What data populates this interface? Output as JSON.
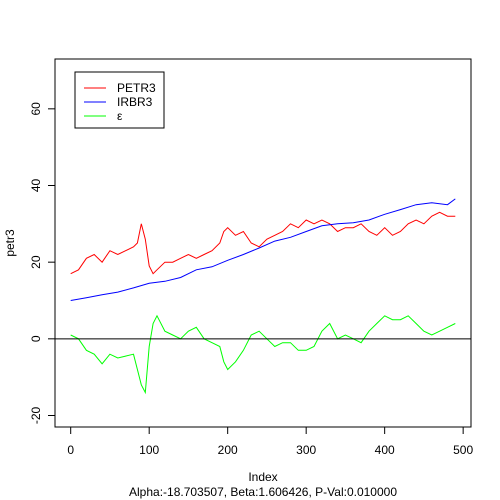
{
  "chart_data": {
    "type": "line",
    "xlabel": "Index",
    "ylabel": "petr3",
    "subtitle": "Alpha:-18.703507, Beta:1.606426, P-Val:0.010000",
    "xlim": [
      -20,
      510
    ],
    "ylim": [
      -23,
      73
    ],
    "x_ticks": [
      0,
      100,
      200,
      300,
      400,
      500
    ],
    "y_ticks": [
      -20,
      0,
      20,
      40,
      60
    ],
    "hline": 0,
    "legend": {
      "position": "top-left"
    },
    "series": [
      {
        "name": "PETR3",
        "color": "#ff0000",
        "x": [
          0,
          10,
          20,
          30,
          40,
          50,
          60,
          70,
          80,
          85,
          90,
          95,
          100,
          105,
          110,
          120,
          130,
          140,
          150,
          160,
          170,
          180,
          190,
          195,
          200,
          210,
          220,
          230,
          240,
          250,
          260,
          270,
          280,
          290,
          300,
          310,
          320,
          330,
          340,
          350,
          360,
          370,
          380,
          390,
          400,
          410,
          420,
          430,
          440,
          450,
          460,
          470,
          480,
          490
        ],
        "y": [
          17,
          18,
          21,
          22,
          20,
          23,
          22,
          23,
          24,
          25,
          30,
          26,
          19,
          17,
          18,
          20,
          20,
          21,
          22,
          21,
          22,
          23,
          25,
          28,
          29,
          27,
          28,
          25,
          24,
          26,
          27,
          28,
          30,
          29,
          31,
          30,
          31,
          30,
          28,
          29,
          29,
          30,
          28,
          27,
          29,
          27,
          28,
          30,
          31,
          30,
          32,
          33,
          32,
          32
        ]
      },
      {
        "name": "IRBR3",
        "color": "#0000ff",
        "x": [
          0,
          20,
          40,
          60,
          80,
          100,
          120,
          140,
          160,
          180,
          200,
          220,
          240,
          260,
          280,
          300,
          320,
          340,
          360,
          380,
          400,
          420,
          440,
          460,
          480,
          490
        ],
        "y": [
          10,
          10.7,
          11.5,
          12.2,
          13.3,
          14.5,
          15,
          16,
          18,
          18.8,
          20.5,
          22,
          23.7,
          25.5,
          26.5,
          28,
          29.5,
          30,
          30.3,
          31,
          32.5,
          33.7,
          35,
          35.5,
          35,
          36.5
        ]
      },
      {
        "name": "ε",
        "color": "#00ff00",
        "x": [
          0,
          10,
          20,
          30,
          40,
          50,
          60,
          70,
          80,
          85,
          90,
          95,
          100,
          105,
          110,
          120,
          130,
          140,
          150,
          160,
          170,
          180,
          190,
          195,
          200,
          210,
          220,
          230,
          240,
          250,
          260,
          270,
          280,
          290,
          300,
          310,
          320,
          330,
          340,
          350,
          360,
          370,
          380,
          390,
          400,
          410,
          420,
          430,
          440,
          450,
          460,
          470,
          480,
          490
        ],
        "y": [
          1,
          0,
          -3,
          -4,
          -6.5,
          -4,
          -5,
          -4.5,
          -4,
          -8,
          -12,
          -14,
          -2,
          4,
          6,
          2,
          1,
          0,
          2,
          3,
          0,
          -1,
          -2,
          -6,
          -8,
          -6,
          -3,
          1,
          2,
          0,
          -2,
          -1,
          -1,
          -3,
          -3,
          -2,
          2,
          4,
          0,
          1,
          0,
          -1,
          2,
          4,
          6,
          5,
          5,
          6,
          4,
          2,
          1,
          2,
          3,
          4
        ]
      }
    ]
  }
}
